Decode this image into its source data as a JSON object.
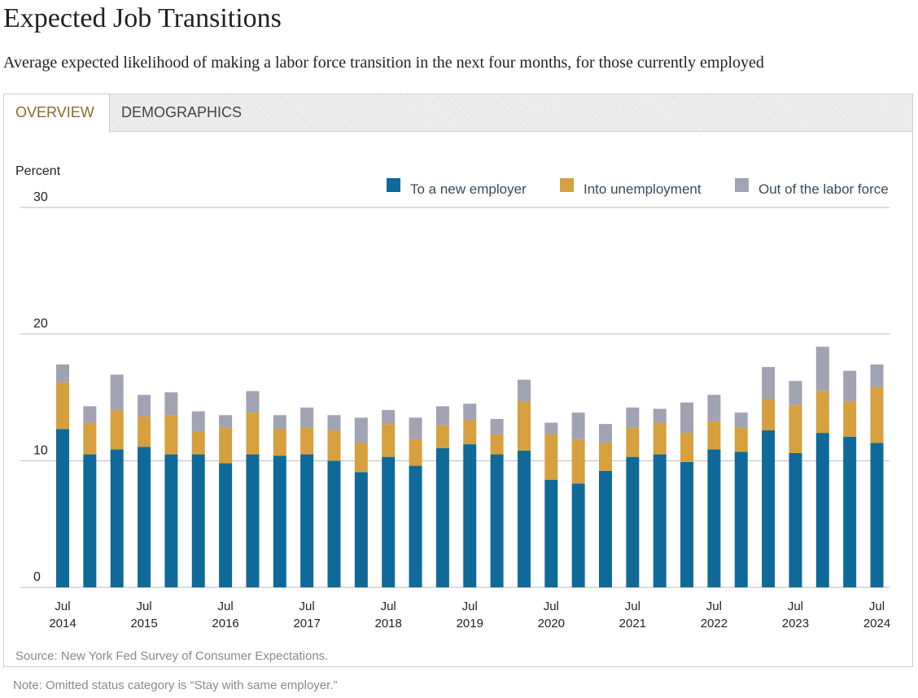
{
  "page": {
    "title": "Expected Job Transitions",
    "subtitle": "Average expected likelihood of making a labor force transition in the next four months, for those currently employed",
    "tabs": [
      "OVERVIEW",
      "DEMOGRAPHICS"
    ],
    "active_tab": "OVERVIEW",
    "source": "Source: New York Fed Survey of Consumer Expectations.",
    "note": "Note: Omitted status category is “Stay with same employer.”"
  },
  "colors": {
    "new_employer": "#0f6a99",
    "unemployment": "#d6a03e",
    "out_of_labor": "#a1a2b2",
    "gridline": "#bbbbbb",
    "active_tab_text": "#8a6a2a"
  },
  "chart_data": {
    "type": "bar",
    "stacked": true,
    "ylabel": "Percent",
    "ylim": [
      0,
      30
    ],
    "yticks": [
      0,
      10,
      20,
      30
    ],
    "grid": true,
    "legend_position": "top-right",
    "x_tick_labels": [
      {
        "index": 0,
        "line1": "Jul",
        "line2": "2014"
      },
      {
        "index": 3,
        "line1": "Jul",
        "line2": "2015"
      },
      {
        "index": 6,
        "line1": "Jul",
        "line2": "2016"
      },
      {
        "index": 9,
        "line1": "Jul",
        "line2": "2017"
      },
      {
        "index": 12,
        "line1": "Jul",
        "line2": "2018"
      },
      {
        "index": 15,
        "line1": "Jul",
        "line2": "2019"
      },
      {
        "index": 18,
        "line1": "Jul",
        "line2": "2020"
      },
      {
        "index": 21,
        "line1": "Jul",
        "line2": "2021"
      },
      {
        "index": 24,
        "line1": "Jul",
        "line2": "2022"
      },
      {
        "index": 27,
        "line1": "Jul",
        "line2": "2023"
      },
      {
        "index": 30,
        "line1": "Jul",
        "line2": "2024"
      }
    ],
    "categories": [
      "Jul 2014",
      "Nov 2014",
      "Mar 2015",
      "Jul 2015",
      "Nov 2015",
      "Mar 2016",
      "Jul 2016",
      "Nov 2016",
      "Mar 2017",
      "Jul 2017",
      "Nov 2017",
      "Mar 2018",
      "Jul 2018",
      "Nov 2018",
      "Mar 2019",
      "Jul 2019",
      "Nov 2019",
      "Mar 2020",
      "Jul 2020",
      "Nov 2020",
      "Mar 2021",
      "Jul 2021",
      "Nov 2021",
      "Mar 2022",
      "Jul 2022",
      "Nov 2022",
      "Mar 2023",
      "Jul 2023",
      "Nov 2023",
      "Mar 2024",
      "Jul 2024"
    ],
    "series": [
      {
        "name": "To a new employer",
        "values": [
          12.5,
          10.5,
          10.9,
          11.1,
          10.5,
          10.5,
          9.8,
          10.5,
          10.4,
          10.5,
          10.0,
          9.1,
          10.3,
          9.6,
          11.0,
          11.3,
          10.5,
          10.8,
          8.5,
          8.2,
          9.2,
          10.3,
          10.5,
          9.9,
          10.9,
          10.7,
          12.4,
          10.6,
          12.2,
          11.9,
          11.4
        ]
      },
      {
        "name": "Into unemployment",
        "values": [
          3.7,
          2.5,
          3.1,
          2.4,
          3.1,
          1.8,
          2.8,
          3.3,
          2.1,
          2.1,
          2.4,
          2.3,
          2.6,
          2.1,
          1.8,
          1.9,
          1.6,
          3.9,
          3.6,
          3.5,
          2.2,
          2.3,
          2.5,
          2.3,
          2.2,
          1.9,
          2.5,
          3.8,
          3.3,
          2.8,
          4.4
        ]
      },
      {
        "name": "Out of the labor force",
        "values": [
          1.4,
          1.3,
          2.8,
          1.7,
          1.8,
          1.6,
          1.0,
          1.7,
          1.1,
          1.6,
          1.2,
          2.0,
          1.1,
          1.7,
          1.5,
          1.3,
          1.2,
          1.7,
          0.9,
          2.1,
          1.5,
          1.6,
          1.1,
          2.4,
          2.1,
          1.2,
          2.5,
          1.9,
          3.5,
          2.4,
          1.8
        ]
      }
    ]
  }
}
